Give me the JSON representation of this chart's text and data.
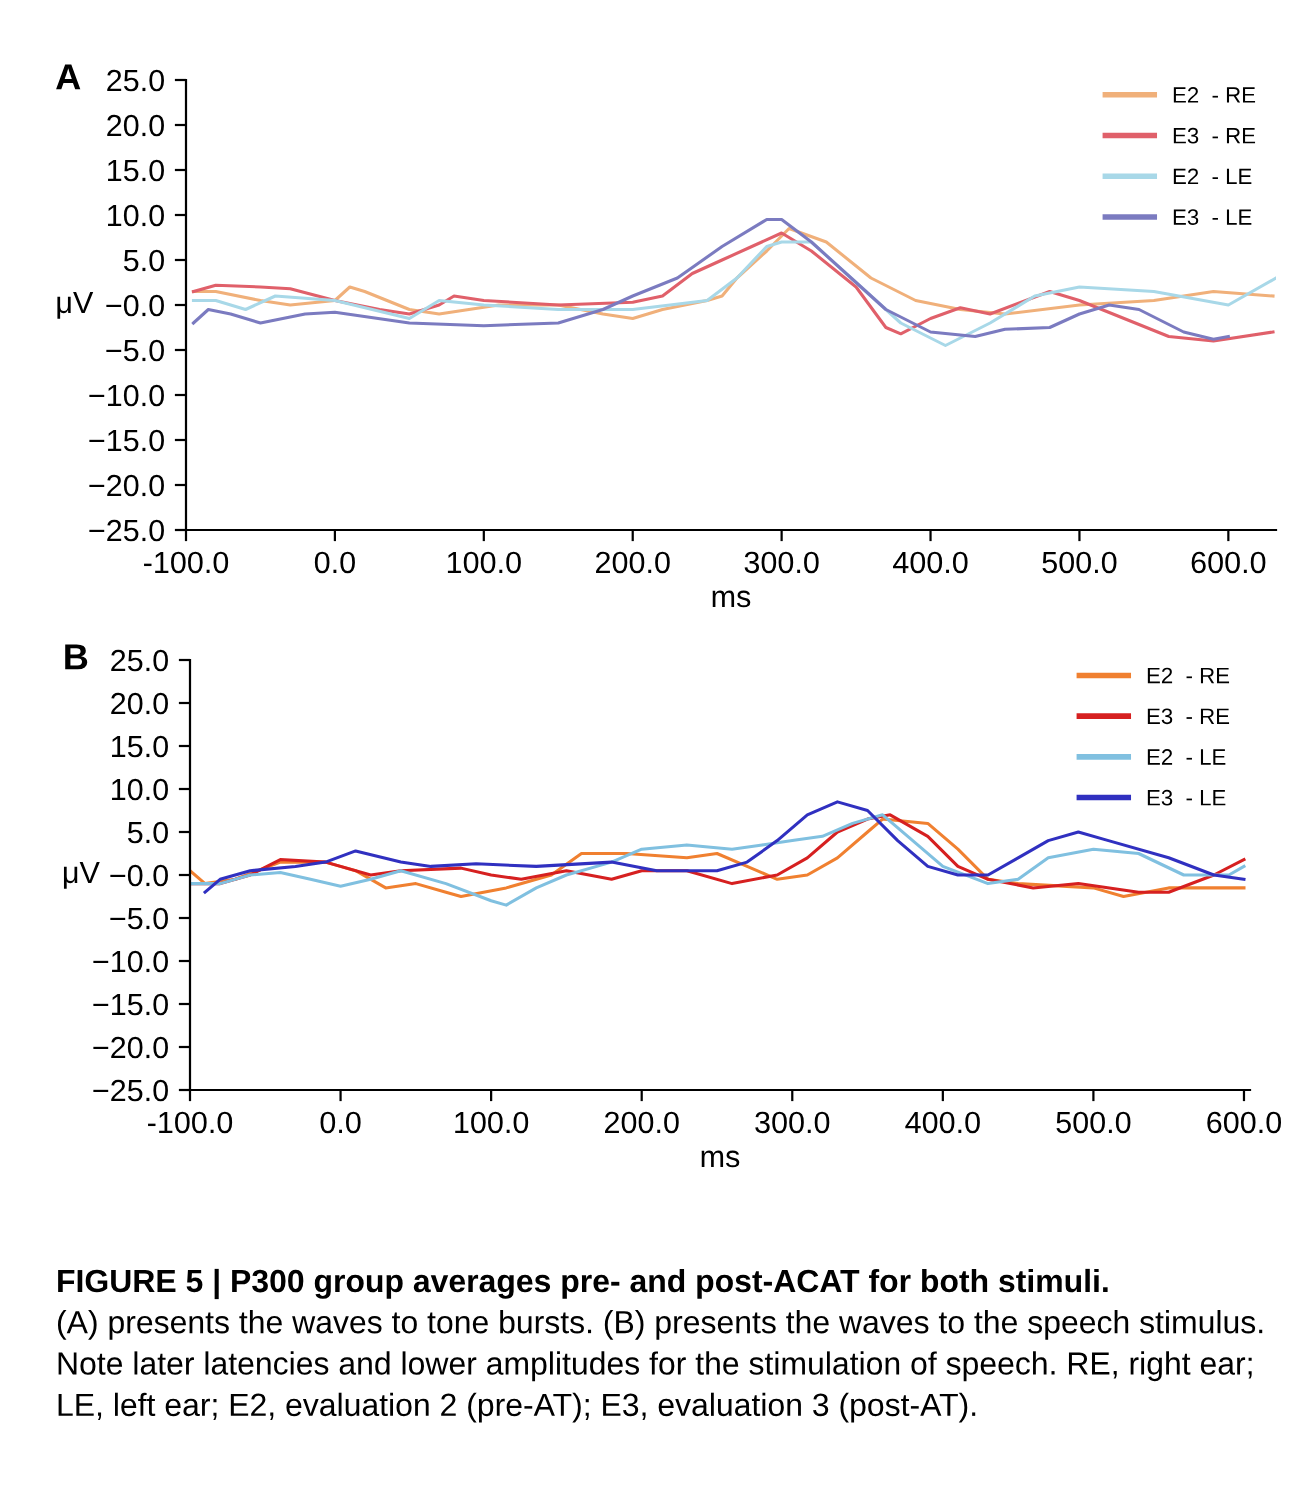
{
  "chart_data": [
    {
      "type": "line",
      "title": "A",
      "xlabel": "ms",
      "ylabel": "μV",
      "legend": "top right",
      "marker": "none",
      "line_style": "solid",
      "grid": false,
      "xlim": [
        -100,
        632
      ],
      "ylim": [
        -25,
        25
      ],
      "xticks": [
        {
          "value": -100,
          "label": "-100.0"
        },
        {
          "value": 0,
          "label": "0.0"
        },
        {
          "value": 100,
          "label": "100.0"
        },
        {
          "value": 200,
          "label": "200.0"
        },
        {
          "value": 300,
          "label": "300.0"
        },
        {
          "value": 400,
          "label": "400.0"
        },
        {
          "value": 500,
          "label": "500.0"
        },
        {
          "value": 600,
          "label": "600.0"
        }
      ],
      "yticks": [
        {
          "value": 25,
          "label": "25.0"
        },
        {
          "value": 20,
          "label": "20.0"
        },
        {
          "value": 15,
          "label": "15.0"
        },
        {
          "value": 10,
          "label": "10.0"
        },
        {
          "value": 5,
          "label": "5.0"
        },
        {
          "value": 0,
          "label": "−0.0"
        },
        {
          "value": -5,
          "label": "−5.0"
        },
        {
          "value": -10,
          "label": "−10.0"
        },
        {
          "value": -15,
          "label": "−15.0"
        },
        {
          "value": -20,
          "label": "−20.0"
        },
        {
          "value": -25,
          "label": "−25.0"
        }
      ],
      "series": [
        {
          "name": "E2  - RE",
          "color": "#f0b07a",
          "x": [
            -95,
            -80,
            -50,
            -30,
            0,
            10,
            20,
            50,
            70,
            90,
            110,
            150,
            180,
            200,
            220,
            250,
            260,
            270,
            290,
            305,
            330,
            360,
            390,
            420,
            450,
            500,
            550,
            590,
            630
          ],
          "values": [
            1.5,
            1.5,
            0.5,
            0,
            0.5,
            2,
            1.5,
            -0.5,
            -1,
            -0.5,
            0,
            0,
            -1,
            -1.5,
            -0.5,
            0.5,
            1,
            3,
            6,
            8.5,
            7,
            3,
            0.5,
            -0.5,
            -1,
            0,
            0.5,
            1.5,
            1
          ]
        },
        {
          "name": "E3  - RE",
          "color": "#e0606a",
          "x": [
            -95,
            -80,
            -50,
            -30,
            0,
            30,
            50,
            70,
            80,
            100,
            150,
            200,
            220,
            240,
            260,
            280,
            300,
            320,
            350,
            370,
            380,
            400,
            420,
            440,
            480,
            500,
            530,
            560,
            590,
            630
          ],
          "values": [
            1.5,
            2.2,
            2,
            1.8,
            0.5,
            -0.5,
            -1,
            0,
            1,
            0.5,
            0,
            0.3,
            1,
            3.5,
            5,
            6.5,
            8,
            6,
            2,
            -2.5,
            -3.2,
            -1.5,
            -0.3,
            -1,
            1.5,
            0.5,
            -1.5,
            -3.5,
            -4,
            -3
          ]
        },
        {
          "name": "E2  - LE",
          "color": "#a8d8e8",
          "x": [
            -95,
            -80,
            -60,
            -40,
            0,
            50,
            70,
            100,
            150,
            200,
            250,
            270,
            290,
            300,
            320,
            350,
            380,
            410,
            440,
            470,
            500,
            550,
            600,
            632
          ],
          "values": [
            0.5,
            0.5,
            -0.5,
            1,
            0.5,
            -1.5,
            0.5,
            0,
            -0.5,
            -0.5,
            0.5,
            3,
            6.5,
            7,
            7,
            2.5,
            -2,
            -4.5,
            -2,
            1,
            2,
            1.5,
            0,
            3
          ]
        },
        {
          "name": "E3  - LE",
          "color": "#7b7bc0",
          "x": [
            -95,
            -85,
            -70,
            -50,
            -20,
            0,
            50,
            100,
            150,
            180,
            200,
            230,
            260,
            290,
            300,
            320,
            350,
            370,
            400,
            430,
            450,
            480,
            500,
            520,
            540,
            570,
            590,
            600
          ],
          "values": [
            -2,
            -0.5,
            -1,
            -2,
            -1,
            -0.8,
            -2,
            -2.3,
            -2,
            -0.5,
            1,
            3,
            6.5,
            9.5,
            9.5,
            7,
            2.5,
            -0.5,
            -3,
            -3.5,
            -2.7,
            -2.5,
            -1,
            0,
            -0.5,
            -3,
            -3.8,
            -3.5
          ]
        }
      ]
    },
    {
      "type": "line",
      "title": "B",
      "xlabel": "ms",
      "ylabel": "μV",
      "legend": "top right",
      "marker": "none",
      "line_style": "solid",
      "grid": false,
      "xlim": [
        -100,
        604
      ],
      "ylim": [
        -25,
        25
      ],
      "xticks": [
        {
          "value": -100,
          "label": "-100.0"
        },
        {
          "value": 0,
          "label": "0.0"
        },
        {
          "value": 100,
          "label": "100.0"
        },
        {
          "value": 200,
          "label": "200.0"
        },
        {
          "value": 300,
          "label": "300.0"
        },
        {
          "value": 400,
          "label": "400.0"
        },
        {
          "value": 500,
          "label": "500.0"
        },
        {
          "value": 600,
          "label": "600.0"
        }
      ],
      "yticks": [
        {
          "value": 25,
          "label": "25.0"
        },
        {
          "value": 20,
          "label": "20.0"
        },
        {
          "value": 15,
          "label": "15.0"
        },
        {
          "value": 10,
          "label": "10.0"
        },
        {
          "value": 5,
          "label": "5.0"
        },
        {
          "value": 0,
          "label": "−0.0"
        },
        {
          "value": -5,
          "label": "−5.0"
        },
        {
          "value": -10,
          "label": "−10.0"
        },
        {
          "value": -15,
          "label": "−15.0"
        },
        {
          "value": -20,
          "label": "−20.0"
        },
        {
          "value": -25,
          "label": "−25.0"
        }
      ],
      "series": [
        {
          "name": "E2  - RE",
          "color": "#f08030",
          "x": [
            -100,
            -90,
            -70,
            -40,
            -10,
            10,
            30,
            50,
            70,
            80,
            110,
            140,
            160,
            190,
            230,
            250,
            270,
            290,
            310,
            330,
            350,
            360,
            390,
            410,
            430,
            450,
            500,
            520,
            550,
            600
          ],
          "values": [
            0.5,
            -1,
            -0.5,
            1.5,
            1.5,
            0.5,
            -1.5,
            -1,
            -2,
            -2.5,
            -1.5,
            0,
            2.5,
            2.5,
            2,
            2.5,
            1,
            -0.5,
            0,
            2,
            5,
            6.5,
            6,
            3,
            -0.5,
            -1,
            -1.5,
            -2.5,
            -1.5,
            -1.5
          ]
        },
        {
          "name": "E3  - RE",
          "color": "#d62020",
          "x": [
            -100,
            -80,
            -60,
            -40,
            -10,
            0,
            20,
            40,
            80,
            100,
            120,
            150,
            180,
            200,
            230,
            260,
            290,
            310,
            330,
            350,
            365,
            390,
            410,
            430,
            460,
            490,
            530,
            550,
            580,
            600
          ],
          "values": [
            -1,
            -1,
            0,
            1.8,
            1.5,
            1,
            0,
            0.5,
            0.8,
            0,
            -0.5,
            0.5,
            -0.5,
            0.5,
            0.5,
            -1,
            0,
            2,
            5,
            6.5,
            7,
            4.5,
            1,
            -0.5,
            -1.5,
            -1,
            -2,
            -2,
            0,
            1.8
          ]
        },
        {
          "name": "E2  - LE",
          "color": "#80c0e0",
          "x": [
            -100,
            -80,
            -60,
            -40,
            -20,
            0,
            20,
            40,
            70,
            100,
            110,
            130,
            150,
            180,
            200,
            230,
            260,
            280,
            300,
            320,
            340,
            360,
            380,
            400,
            430,
            450,
            470,
            500,
            530,
            560,
            590,
            600
          ],
          "values": [
            -1,
            -1,
            0,
            0.3,
            -0.5,
            -1.3,
            -0.5,
            0.5,
            -1,
            -3,
            -3.5,
            -1.5,
            0,
            1.5,
            3,
            3.5,
            3,
            3.5,
            4,
            4.5,
            6,
            7,
            4,
            1,
            -1,
            -0.5,
            2,
            3,
            2.5,
            0,
            0,
            1
          ]
        },
        {
          "name": "E3  - LE",
          "color": "#3030c0",
          "x": [
            -90,
            -80,
            -60,
            -30,
            -10,
            10,
            40,
            60,
            90,
            130,
            180,
            210,
            250,
            270,
            290,
            310,
            330,
            350,
            370,
            390,
            410,
            430,
            450,
            470,
            490,
            510,
            550,
            580,
            600
          ],
          "values": [
            -2,
            -0.5,
            0.5,
            1,
            1.5,
            2.8,
            1.5,
            1,
            1.3,
            1,
            1.5,
            0.5,
            0.5,
            1.5,
            4,
            7,
            8.5,
            7.5,
            4,
            1,
            0,
            0,
            2,
            4,
            5,
            4,
            2,
            0,
            -0.5
          ]
        }
      ],
      "annotations": [
        "FIGURE 5 | P300 group averages pre- and post-ACAT for both stimuli.",
        "(A) presents the waves to tone bursts. (B) presents the waves to the speech stimulus. Note later latencies and lower amplitudes for the stimulation of speech. RE, right ear; LE, left ear; E2, evaluation 2 (pre-AT); E3, evaluation 3 (post-AT)."
      ]
    }
  ]
}
